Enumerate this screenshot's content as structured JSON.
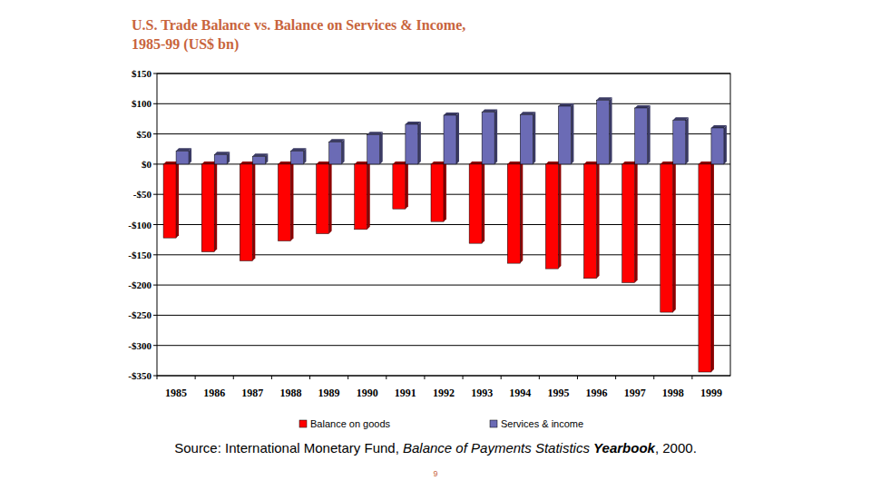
{
  "chart_data": {
    "type": "bar",
    "title": [
      "U.S. Trade Balance vs. Balance on Services & Income,",
      "1985-99 (US$ bn)"
    ],
    "categories": [
      "1985",
      "1986",
      "1987",
      "1988",
      "1989",
      "1990",
      "1991",
      "1992",
      "1993",
      "1994",
      "1995",
      "1996",
      "1997",
      "1998",
      "1999"
    ],
    "series": [
      {
        "name": "Balance on goods",
        "color": "#ff0000",
        "values": [
          -122,
          -145,
          -160,
          -127,
          -115,
          -108,
          -74,
          -95,
          -131,
          -164,
          -173,
          -189,
          -196,
          -245,
          -344
        ]
      },
      {
        "name": "Services & income",
        "color": "#6b6bb5",
        "values": [
          22,
          16,
          13,
          22,
          37,
          49,
          66,
          81,
          86,
          82,
          96,
          106,
          93,
          73,
          60
        ]
      }
    ],
    "ylim": [
      -350,
      150
    ],
    "yticks": [
      {
        "value": 150,
        "label": "$150"
      },
      {
        "value": 100,
        "label": "$100"
      },
      {
        "value": 50,
        "label": "$50"
      },
      {
        "value": 0,
        "label": "$0"
      },
      {
        "value": -50,
        "label": "-$50"
      },
      {
        "value": -100,
        "label": "-$100"
      },
      {
        "value": -150,
        "label": "-$150"
      },
      {
        "value": -200,
        "label": "-$200"
      },
      {
        "value": -250,
        "label": "-$250"
      },
      {
        "value": -300,
        "label": "-$300"
      },
      {
        "value": -350,
        "label": "-$350"
      }
    ],
    "grid": true,
    "legend": "bottom",
    "source": [
      "Source: International Monetary Fund, ",
      "Balance of Payments Statistics ",
      "Yearbook",
      ", 2000."
    ],
    "page_number": "9"
  }
}
